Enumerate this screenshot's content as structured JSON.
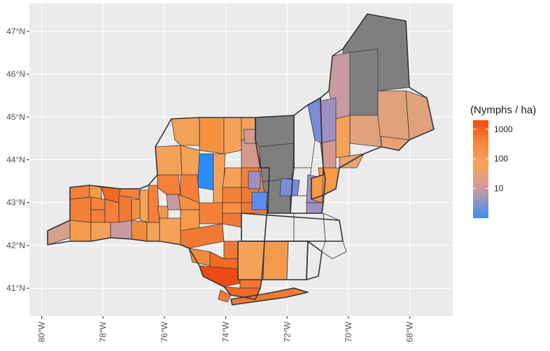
{
  "map": {
    "panel_color": "#ebebeb",
    "grid_color": "#ffffff",
    "no_data_color": "#7f7f7f",
    "zero_color": "#ebebeb",
    "border_color": "#333333",
    "lat_ticks": [
      {
        "value": 41,
        "label": "41°N"
      },
      {
        "value": 42,
        "label": "42°N"
      },
      {
        "value": 43,
        "label": "43°N"
      },
      {
        "value": 44,
        "label": "44°N"
      },
      {
        "value": 45,
        "label": "45°N"
      },
      {
        "value": 46,
        "label": "46°N"
      },
      {
        "value": 47,
        "label": "47°N"
      }
    ],
    "lon_ticks": [
      {
        "value": -80,
        "label": "80°W"
      },
      {
        "value": -78,
        "label": "78°W"
      },
      {
        "value": -76,
        "label": "76°W"
      },
      {
        "value": -74,
        "label": "74°W"
      },
      {
        "value": -72,
        "label": "72°W"
      },
      {
        "value": -70,
        "label": "70°W"
      },
      {
        "value": -68,
        "label": "68°W"
      }
    ],
    "lon_range": [
      -80.4,
      -66.6
    ],
    "lat_range": [
      40.35,
      47.65
    ]
  },
  "legend": {
    "title": "(Nymphs / ha)",
    "scale": "log10",
    "range": [
      1,
      2000
    ],
    "gradient_colors": [
      "#3d8ef2",
      "#cc9b9f",
      "#f7a25e",
      "#f5803a",
      "#f24a14"
    ],
    "ticks": [
      {
        "value": 1000,
        "label": "1000"
      },
      {
        "value": 100,
        "label": "100"
      },
      {
        "value": 10,
        "label": "10"
      }
    ]
  }
}
